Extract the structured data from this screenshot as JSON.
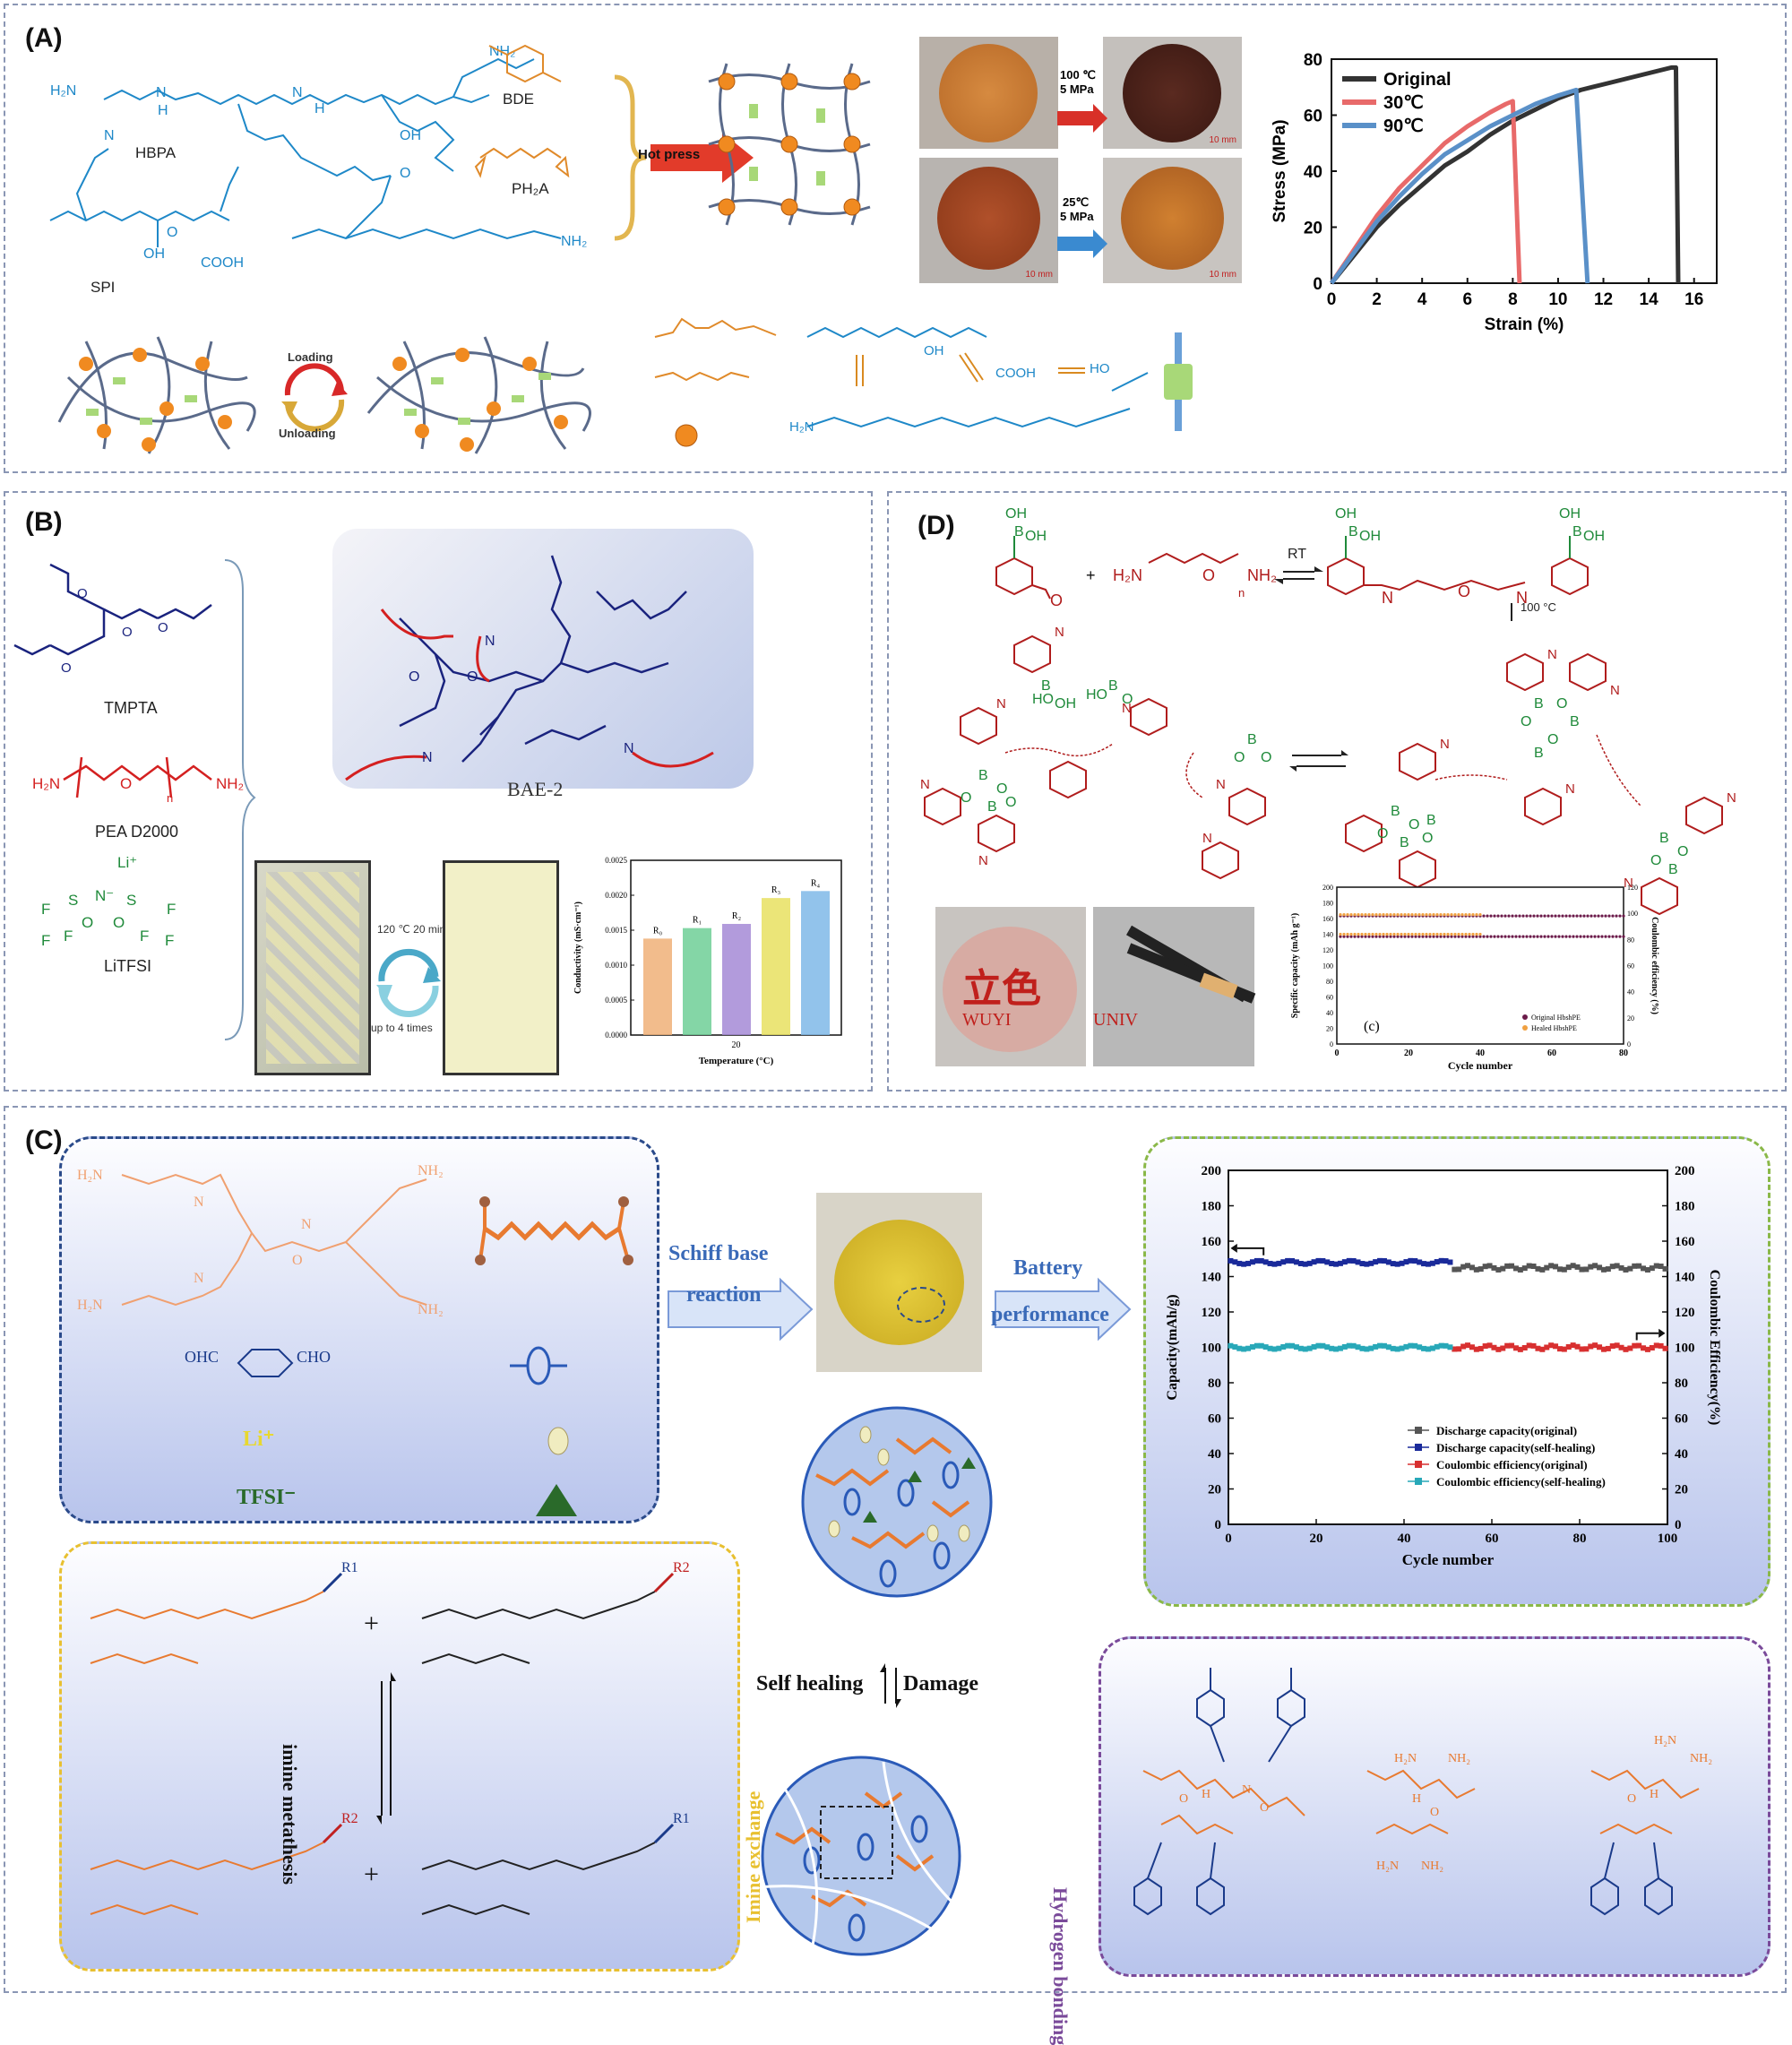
{
  "panels": {
    "A": {
      "label": "(A)",
      "molecules": {
        "hbpa": "HBPA",
        "spi": "SPI",
        "bde": "BDE",
        "ph2a": "PH₂A"
      },
      "hot_press": "Hot press",
      "photo_conditions_top": [
        "100 ℃",
        "5 MPa"
      ],
      "photo_conditions_bottom": [
        "25℃",
        "5 MPa"
      ],
      "scale_bar": "10 mm",
      "loading": "Loading",
      "unloading": "Unloading"
    },
    "B": {
      "label": "(B)",
      "molecules": {
        "tmpta": "TMPTA",
        "pea": "PEA D2000",
        "litfsi": "LiTFSI"
      },
      "network": "BAE-2",
      "heal_condition": "120 ℃  20 min",
      "cycles": "up to 4 times"
    },
    "C": {
      "label": "(C)",
      "labels": {
        "cho": "OHC",
        "cho2": "CHO",
        "li": "Li⁺",
        "tfsi": "TFSI⁻"
      },
      "schiff_1": "Schiff base",
      "schiff_2": "reaction",
      "battery_1": "Battery",
      "battery_2": "performance",
      "self_healing": "Self healing",
      "damage": "Damage",
      "imine_metathesis": "imine metathesis",
      "imine_exchange": "Imine exchange",
      "hydrogen_bonding": "Hydrogen bonding"
    },
    "D": {
      "label": "(D)",
      "rt": "RT",
      "heat": "100 °C",
      "photo_text_1": "WUYI",
      "photo_text_2": "UNIV"
    }
  },
  "chart_data": [
    {
      "type": "line",
      "id": "stress-strain",
      "xlabel": "Strain (%)",
      "ylabel": "Stress (MPa)",
      "xlim": [
        0,
        17
      ],
      "ylim": [
        0,
        80
      ],
      "xticks": [
        0,
        2,
        4,
        6,
        8,
        10,
        12,
        14,
        16
      ],
      "yticks": [
        0,
        20,
        40,
        60,
        80
      ],
      "legend_position": "top-left",
      "series": [
        {
          "name": "Original",
          "color": "#333333",
          "x": [
            0,
            1,
            2,
            3,
            4,
            5,
            6,
            7,
            8,
            9,
            10,
            11,
            12,
            13,
            14,
            15,
            15.2,
            15.3
          ],
          "y": [
            0,
            10,
            20,
            28,
            35,
            42,
            47,
            53,
            58,
            62,
            66,
            69,
            71,
            73,
            75,
            77,
            77,
            0
          ]
        },
        {
          "name": "30℃",
          "color": "#e86a6a",
          "x": [
            0,
            1,
            2,
            3,
            4,
            5,
            6,
            7,
            7.7,
            8.0,
            8.3
          ],
          "y": [
            0,
            12,
            24,
            34,
            42,
            50,
            56,
            61,
            64,
            65,
            0
          ]
        },
        {
          "name": "90℃",
          "color": "#5a90c8",
          "x": [
            0,
            1,
            2,
            3,
            4,
            5,
            6,
            7,
            8,
            9,
            10,
            10.8,
            11.3
          ],
          "y": [
            0,
            11,
            22,
            31,
            39,
            46,
            51,
            56,
            60,
            64,
            67,
            69,
            0
          ]
        }
      ]
    },
    {
      "type": "bar",
      "id": "conductivity",
      "xlabel": "Temperature (°C)",
      "ylabel": "Conductivity (mS·cm⁻¹)",
      "categories": [
        "R₀",
        "R₁",
        "R₂",
        "R₃",
        "R₄"
      ],
      "x_tick": "20",
      "values": [
        0.00138,
        0.00153,
        0.00159,
        0.00196,
        0.00206
      ],
      "ylim": [
        0,
        0.0025
      ],
      "yticks": [
        "0.0000",
        "0.0005",
        "0.0010",
        "0.0015",
        "0.0020",
        "0.0025"
      ],
      "colors": [
        "#f0b078",
        "#6fcf97",
        "#a48ad6",
        "#e8e060",
        "#7fb8e8"
      ]
    },
    {
      "type": "scatter",
      "id": "cycling-d",
      "label": "(c)",
      "xlabel": "Cycle number",
      "ylabel": "Specific capacity (mAh g⁻¹)",
      "ylabel_right": "Coulombic efficiency (%)",
      "xlim": [
        0,
        80
      ],
      "ylim": [
        0,
        200
      ],
      "ylim_right": [
        0,
        120
      ],
      "xticks": [
        0,
        20,
        40,
        60,
        80
      ],
      "yticks": [
        0,
        20,
        40,
        60,
        80,
        100,
        120,
        140,
        160,
        180,
        200
      ],
      "yticks_right": [
        0,
        20,
        40,
        60,
        80,
        100,
        120
      ],
      "legend": [
        "Original HbshPE",
        "Healed HbshPE"
      ],
      "series": [
        {
          "name": "Original HbshPE",
          "color": "#6b1b4a",
          "capacity": 137,
          "efficiency": 98
        },
        {
          "name": "Healed HbshPE",
          "color": "#f0a040",
          "capacity": 140,
          "efficiency": 99
        }
      ]
    },
    {
      "type": "scatter",
      "id": "cycling-c",
      "xlabel": "Cycle number",
      "ylabel": "Capacity(mAh/g)",
      "ylabel_right": "Coulombic Efficiency(%)",
      "xlim": [
        0,
        100
      ],
      "ylim": [
        0,
        200
      ],
      "xticks": [
        0,
        20,
        40,
        60,
        80,
        100
      ],
      "yticks": [
        0,
        20,
        40,
        60,
        80,
        100,
        120,
        140,
        160,
        180,
        200
      ],
      "legend_position": "bottom-right",
      "series": [
        {
          "name": "Discharge capacity(original)",
          "color": "#555555",
          "x_range": [
            51,
            100
          ],
          "value": 145
        },
        {
          "name": "Discharge capacity(self-healing)",
          "color": "#1a2a9a",
          "x_range": [
            0,
            51
          ],
          "value": 148
        },
        {
          "name": "Coulombic efficiency(original)",
          "color": "#d83030",
          "x_range": [
            51,
            100
          ],
          "value": 100
        },
        {
          "name": "Coulombic efficiency(self-healing)",
          "color": "#28a8b8",
          "x_range": [
            0,
            51
          ],
          "value": 100
        }
      ]
    }
  ]
}
